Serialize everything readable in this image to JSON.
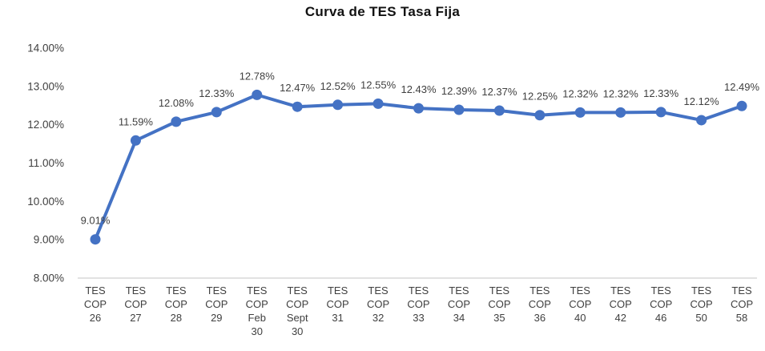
{
  "chart_data": {
    "type": "line",
    "title": "Curva de TES Tasa Fija",
    "xlabel": "",
    "ylabel": "",
    "categories": [
      "TES\nCOP\n26",
      "TES\nCOP\n27",
      "TES\nCOP\n28",
      "TES\nCOP\n29",
      "TES\nCOP\nFeb\n30",
      "TES\nCOP\nSept\n30",
      "TES\nCOP\n31",
      "TES\nCOP\n32",
      "TES\nCOP\n33",
      "TES\nCOP\n34",
      "TES\nCOP\n35",
      "TES\nCOP\n36",
      "TES\nCOP\n40",
      "TES\nCOP\n42",
      "TES\nCOP\n46",
      "TES\nCOP\n50",
      "TES\nCOP\n58"
    ],
    "values": [
      9.01,
      11.59,
      12.08,
      12.33,
      12.78,
      12.47,
      12.52,
      12.55,
      12.43,
      12.39,
      12.37,
      12.25,
      12.32,
      12.32,
      12.33,
      12.12,
      12.49
    ],
    "data_labels": [
      "9.01%",
      "11.59%",
      "12.08%",
      "12.33%",
      "12.78%",
      "12.47%",
      "12.52%",
      "12.55%",
      "12.43%",
      "12.39%",
      "12.37%",
      "12.25%",
      "12.32%",
      "12.32%",
      "12.33%",
      "12.12%",
      "12.49%"
    ],
    "y_tick_labels": [
      "14.00%",
      "13.00%",
      "12.00%",
      "11.00%",
      "10.00%",
      "9.00%",
      "8.00%"
    ],
    "ylim": [
      8,
      14
    ],
    "y_step": 1,
    "grid": false,
    "legend": "none",
    "colors": {
      "line": "#4472C4",
      "marker": "#4472C4",
      "data_label_text": "#404040",
      "axis_tick_text": "#404040",
      "axis_line": "#D9D9D9",
      "title_text": "#111111",
      "background": "#FFFFFF"
    }
  }
}
